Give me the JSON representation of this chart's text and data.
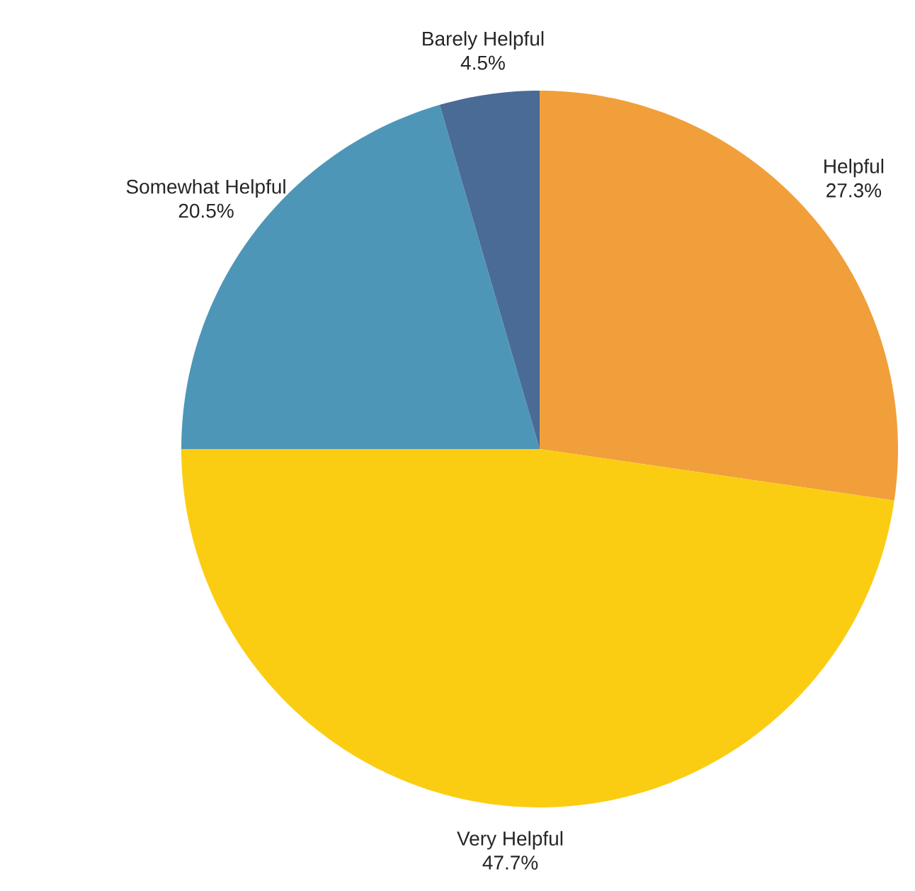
{
  "chart_data": {
    "type": "pie",
    "categories": [
      "Helpful",
      "Very Helpful",
      "Somewhat Helpful",
      "Barely Helpful"
    ],
    "values": [
      27.3,
      47.7,
      20.5,
      4.5
    ],
    "colors": [
      "#f19f3b",
      "#fbcd12",
      "#4e96b8",
      "#4a6b96"
    ],
    "value_labels": [
      "27.3%",
      "47.7%",
      "20.5%",
      "4.5%"
    ]
  }
}
